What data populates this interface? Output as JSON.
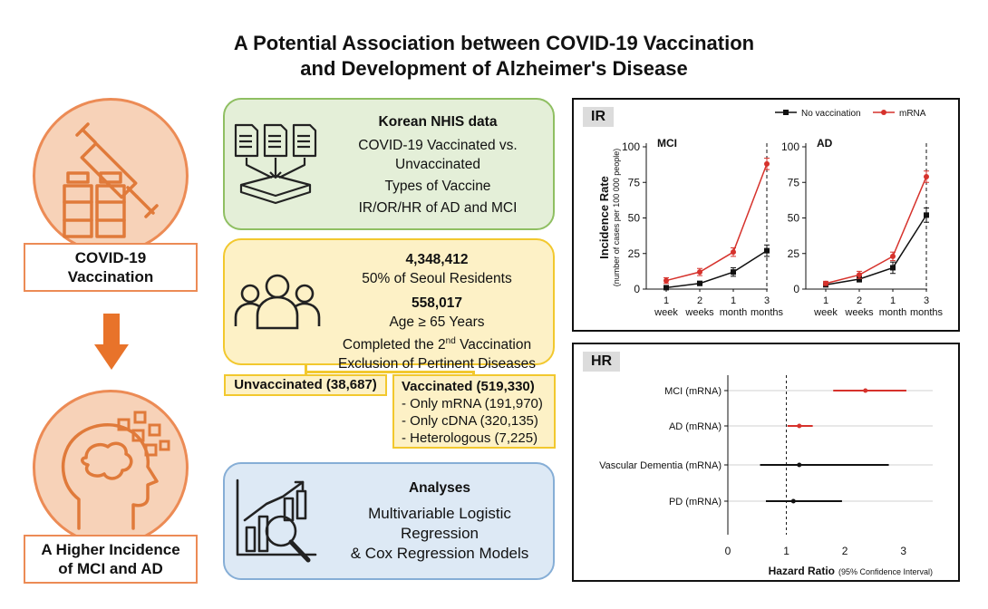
{
  "title": {
    "line1": "A Potential Association between COVID-19 Vaccination",
    "line2": "and Development of Alzheimer's Disease"
  },
  "left": {
    "top_label_line1": "COVID-19",
    "top_label_line2": "Vaccination",
    "bottom_label_line1": "A Higher Incidence",
    "bottom_label_line2": "of MCI and AD"
  },
  "data_box": {
    "heading": "Korean NHIS data",
    "line1": "COVID-19 Vaccinated vs.",
    "line2": "Unvaccinated",
    "line3": "Types of Vaccine",
    "line4": "IR/OR/HR of AD and MCI"
  },
  "cohort_box": {
    "count1": "4,348,412",
    "desc1": "50% of Seoul Residents",
    "count2": "558,017",
    "desc2": "Age ≥ 65 Years",
    "desc3_prefix": "Completed the 2",
    "desc3_sup": "nd",
    "desc3_suffix": " Vaccination",
    "desc4": "Exclusion of Pertinent Diseases"
  },
  "groups": {
    "unvaccinated": "Unvaccinated (38,687)",
    "vaccinated_heading": "Vaccinated (519,330)",
    "vaccinated_items": [
      "- Only mRNA (191,970)",
      "- Only cDNA (320,135)",
      "- Heterologous (7,225)"
    ]
  },
  "analysis_box": {
    "heading": "Analyses",
    "line1": "Multivariable Logistic",
    "line2": "Regression",
    "line3": "& Cox Regression Models"
  },
  "chart_data": [
    {
      "type": "line",
      "panel": "IR",
      "ylabel": "Incidence Rate",
      "ylabel_sub": "(number of cases per 100 000 people)",
      "categories": [
        "1 week",
        "2 weeks",
        "1 month",
        "3 months"
      ],
      "ylim": [
        0,
        100
      ],
      "yticks": [
        0,
        25,
        50,
        75,
        100
      ],
      "legend": [
        "No vaccination",
        "mRNA"
      ],
      "colors": {
        "No vaccination": "#111111",
        "mRNA": "#d6322c"
      },
      "subplots": [
        {
          "title": "MCI",
          "series": [
            {
              "name": "No vaccination",
              "values": [
                1,
                4,
                12,
                27
              ],
              "errors": [
                1,
                1.5,
                3,
                4
              ]
            },
            {
              "name": "mRNA",
              "values": [
                6,
                12,
                26,
                88
              ],
              "errors": [
                2,
                2.5,
                3,
                4
              ]
            }
          ]
        },
        {
          "title": "AD",
          "series": [
            {
              "name": "No vaccination",
              "values": [
                3,
                7,
                15,
                52
              ],
              "errors": [
                1,
                2,
                4,
                5
              ]
            },
            {
              "name": "mRNA",
              "values": [
                4,
                10,
                23,
                79
              ],
              "errors": [
                1.5,
                2.5,
                3,
                4
              ]
            }
          ]
        }
      ]
    },
    {
      "type": "forest",
      "panel": "HR",
      "xlabel": "Hazard Ratio",
      "xlabel_sub": "(95% Confidence Interval)",
      "xlim": [
        0,
        3.5
      ],
      "xticks": [
        0,
        1,
        2,
        3
      ],
      "reference": 1,
      "rows": [
        {
          "label": "MCI (mRNA)",
          "hr": 2.35,
          "lo": 1.8,
          "hi": 3.05,
          "color": "#d6322c"
        },
        {
          "label": "AD (mRNA)",
          "hr": 1.22,
          "lo": 1.02,
          "hi": 1.45,
          "color": "#d6322c"
        },
        {
          "label": "Vascular Dementia (mRNA)",
          "hr": 1.22,
          "lo": 0.55,
          "hi": 2.75,
          "color": "#111111"
        },
        {
          "label": "PD (mRNA)",
          "hr": 1.12,
          "lo": 0.65,
          "hi": 1.95,
          "color": "#111111"
        }
      ]
    }
  ]
}
